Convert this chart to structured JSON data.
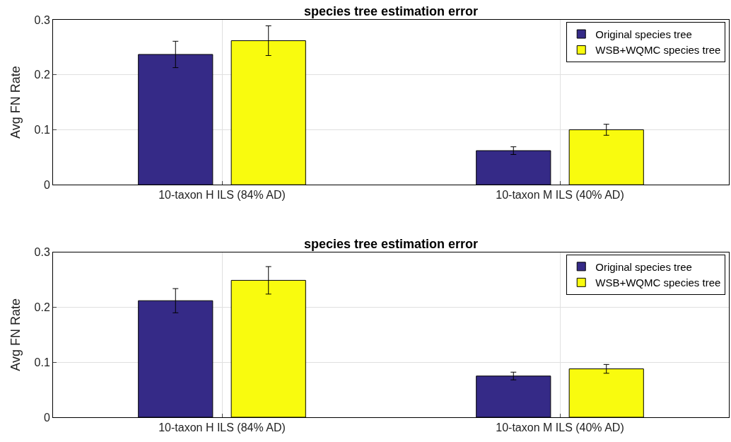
{
  "chart_data": [
    {
      "type": "bar",
      "title": "species tree estimation error",
      "ylabel": "Avg FN Rate",
      "categories": [
        "10-taxon H ILS (84% AD)",
        "10-taxon M ILS (40% AD)"
      ],
      "series": [
        {
          "name": "Original species tree",
          "color": "#352a87",
          "values": [
            0.237,
            0.062
          ],
          "errors": [
            0.024,
            0.007
          ]
        },
        {
          "name": "WSB+WQMC species tree",
          "color": "#f9fb0e",
          "values": [
            0.262,
            0.1
          ],
          "errors": [
            0.027,
            0.01
          ]
        }
      ],
      "ylim": [
        0,
        0.3
      ],
      "yticks": [
        0,
        0.1,
        0.2,
        0.3
      ],
      "grid": true,
      "legend": "top right"
    },
    {
      "type": "bar",
      "title": "species tree estimation error",
      "ylabel": "Avg FN Rate",
      "categories": [
        "10-taxon H ILS (84% AD)",
        "10-taxon M ILS (40% AD)"
      ],
      "series": [
        {
          "name": "Original species tree",
          "color": "#352a87",
          "values": [
            0.212,
            0.075
          ],
          "errors": [
            0.022,
            0.007
          ]
        },
        {
          "name": "WSB+WQMC species tree",
          "color": "#f9fb0e",
          "values": [
            0.249,
            0.088
          ],
          "errors": [
            0.025,
            0.008
          ]
        }
      ],
      "ylim": [
        0,
        0.3
      ],
      "yticks": [
        0,
        0.1,
        0.2,
        0.3
      ],
      "grid": true,
      "legend": "top right"
    }
  ]
}
